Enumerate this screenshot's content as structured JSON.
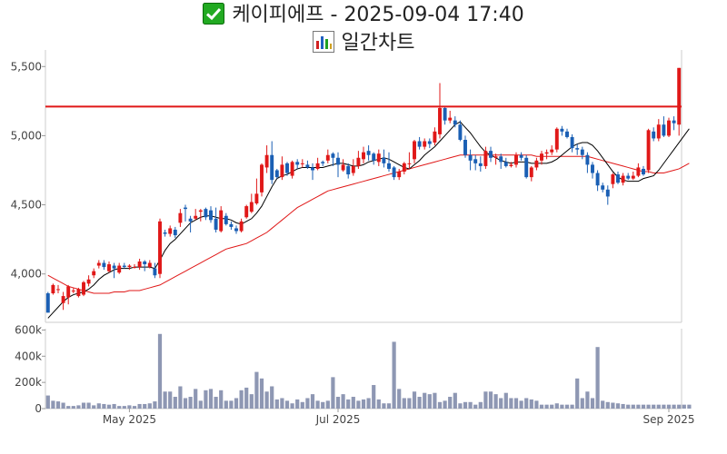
{
  "header": {
    "title": "케이피에프 - 2025-09-04 17:40",
    "subtitle": "일간차트",
    "check_icon": "check-box-icon",
    "chart_icon": "bar-chart-icon"
  },
  "chart_data": [
    {
      "type": "candlestick",
      "y_ticks": [
        "5,500",
        "5,000",
        "4,500",
        "4,000"
      ],
      "y_tick_values": [
        5500,
        5000,
        4500,
        4000
      ],
      "ylim": [
        3650,
        5620
      ],
      "reference_line": 5210,
      "up_color": "#e01818",
      "down_color": "#1a5fb4",
      "ma_short_color": "#000000",
      "ma_long_color": "#e01818",
      "candles": [
        [
          3860,
          3720,
          3870,
          3720
        ],
        [
          3860,
          3920,
          3930,
          3850
        ],
        [
          3890,
          3890,
          3920,
          3860
        ],
        [
          3790,
          3840,
          3870,
          3740
        ],
        [
          3830,
          3910,
          3920,
          3780
        ],
        [
          3880,
          3880,
          3900,
          3860
        ],
        [
          3840,
          3890,
          3900,
          3830
        ],
        [
          3850,
          3940,
          3950,
          3840
        ],
        [
          3930,
          3960,
          3990,
          3910
        ],
        [
          3990,
          4020,
          4040,
          3970
        ],
        [
          4060,
          4080,
          4100,
          4040
        ],
        [
          4080,
          4050,
          4100,
          4030
        ],
        [
          4020,
          4070,
          4090,
          4010
        ],
        [
          4060,
          4040,
          4080,
          3970
        ],
        [
          4010,
          4060,
          4080,
          4000
        ],
        [
          4060,
          4050,
          4080,
          4040
        ],
        [
          4050,
          4060,
          4070,
          4030
        ],
        [
          4050,
          4050,
          4070,
          4040
        ],
        [
          4050,
          4090,
          4110,
          4030
        ],
        [
          4090,
          4070,
          4100,
          4020
        ],
        [
          4050,
          4080,
          4100,
          4040
        ],
        [
          4040,
          3990,
          4080,
          3970
        ],
        [
          4000,
          4380,
          4400,
          3970
        ],
        [
          4300,
          4290,
          4320,
          4270
        ],
        [
          4290,
          4330,
          4350,
          4270
        ],
        [
          4320,
          4280,
          4340,
          4260
        ],
        [
          4370,
          4440,
          4470,
          4340
        ],
        [
          4480,
          4470,
          4500,
          4380
        ],
        [
          4400,
          4380,
          4420,
          4300
        ],
        [
          4400,
          4420,
          4470,
          4390
        ],
        [
          4450,
          4460,
          4470,
          4380
        ],
        [
          4470,
          4410,
          4480,
          4390
        ],
        [
          4460,
          4390,
          4490,
          4370
        ],
        [
          4400,
          4320,
          4480,
          4300
        ],
        [
          4310,
          4460,
          4490,
          4300
        ],
        [
          4420,
          4360,
          4440,
          4350
        ],
        [
          4360,
          4340,
          4380,
          4320
        ],
        [
          4330,
          4310,
          4350,
          4290
        ],
        [
          4310,
          4380,
          4400,
          4300
        ],
        [
          4410,
          4490,
          4500,
          4400
        ],
        [
          4450,
          4520,
          4580,
          4440
        ],
        [
          4510,
          4580,
          4690,
          4500
        ],
        [
          4590,
          4790,
          4800,
          4560
        ],
        [
          4770,
          4860,
          4930,
          4730
        ],
        [
          4860,
          4680,
          4960,
          4650
        ],
        [
          4750,
          4700,
          4760,
          4690
        ],
        [
          4700,
          4790,
          4850,
          4680
        ],
        [
          4800,
          4730,
          4810,
          4710
        ],
        [
          4710,
          4810,
          4820,
          4690
        ],
        [
          4810,
          4790,
          4830,
          4760
        ],
        [
          4800,
          4800,
          4830,
          4770
        ],
        [
          4790,
          4770,
          4820,
          4760
        ],
        [
          4770,
          4750,
          4800,
          4680
        ],
        [
          4760,
          4800,
          4840,
          4750
        ],
        [
          4810,
          4800,
          4820,
          4780
        ],
        [
          4820,
          4860,
          4900,
          4800
        ],
        [
          4870,
          4840,
          4880,
          4780
        ],
        [
          4840,
          4790,
          4880,
          4700
        ],
        [
          4750,
          4790,
          4830,
          4740
        ],
        [
          4780,
          4720,
          4800,
          4690
        ],
        [
          4730,
          4780,
          4830,
          4710
        ],
        [
          4780,
          4840,
          4890,
          4760
        ],
        [
          4830,
          4880,
          4920,
          4800
        ],
        [
          4890,
          4860,
          4930,
          4820
        ],
        [
          4870,
          4820,
          4880,
          4790
        ],
        [
          4810,
          4870,
          4900,
          4780
        ],
        [
          4840,
          4800,
          4900,
          4770
        ],
        [
          4800,
          4760,
          4880,
          4740
        ],
        [
          4770,
          4700,
          4780,
          4680
        ],
        [
          4700,
          4740,
          4760,
          4680
        ],
        [
          4740,
          4800,
          4810,
          4720
        ],
        [
          4800,
          4800,
          4880,
          4760
        ],
        [
          4830,
          4960,
          4970,
          4800
        ],
        [
          4960,
          4920,
          4990,
          4900
        ],
        [
          4920,
          4960,
          4980,
          4900
        ],
        [
          4960,
          4940,
          4980,
          4910
        ],
        [
          4950,
          5030,
          5060,
          4930
        ],
        [
          5010,
          5200,
          5380,
          4980
        ],
        [
          5200,
          5110,
          5210,
          5080
        ],
        [
          5110,
          5130,
          5180,
          5090
        ],
        [
          5110,
          5080,
          5140,
          5060
        ],
        [
          5080,
          4970,
          5110,
          4960
        ],
        [
          4970,
          4860,
          5000,
          4840
        ],
        [
          4860,
          4820,
          4900,
          4750
        ],
        [
          4830,
          4800,
          4860,
          4750
        ],
        [
          4800,
          4780,
          4850,
          4740
        ],
        [
          4780,
          4890,
          4920,
          4760
        ],
        [
          4890,
          4840,
          4920,
          4810
        ],
        [
          4840,
          4850,
          4870,
          4790
        ],
        [
          4850,
          4810,
          4870,
          4760
        ],
        [
          4810,
          4780,
          4840,
          4770
        ],
        [
          4780,
          4790,
          4810,
          4770
        ],
        [
          4790,
          4860,
          4880,
          4770
        ],
        [
          4860,
          4840,
          4880,
          4820
        ],
        [
          4840,
          4700,
          4860,
          4690
        ],
        [
          4700,
          4770,
          4780,
          4670
        ],
        [
          4770,
          4820,
          4840,
          4750
        ],
        [
          4820,
          4870,
          4890,
          4790
        ],
        [
          4870,
          4880,
          4900,
          4830
        ],
        [
          4880,
          4900,
          4930,
          4860
        ],
        [
          4900,
          5050,
          5060,
          4880
        ],
        [
          5050,
          5030,
          5070,
          5000
        ],
        [
          5030,
          4990,
          5050,
          4980
        ],
        [
          4990,
          4910,
          5010,
          4880
        ],
        [
          4910,
          4900,
          4940,
          4860
        ],
        [
          4900,
          4860,
          4920,
          4830
        ],
        [
          4860,
          4790,
          4880,
          4730
        ],
        [
          4790,
          4730,
          4810,
          4690
        ],
        [
          4730,
          4640,
          4750,
          4600
        ],
        [
          4640,
          4610,
          4660,
          4590
        ],
        [
          4610,
          4560,
          4640,
          4500
        ],
        [
          4650,
          4720,
          4730,
          4620
        ],
        [
          4720,
          4660,
          4740,
          4650
        ],
        [
          4660,
          4710,
          4730,
          4640
        ],
        [
          4710,
          4690,
          4730,
          4680
        ],
        [
          4690,
          4710,
          4740,
          4680
        ],
        [
          4710,
          4770,
          4800,
          4700
        ],
        [
          4760,
          4720,
          4780,
          4710
        ],
        [
          4750,
          5040,
          5050,
          4730
        ],
        [
          5030,
          4980,
          5060,
          4960
        ],
        [
          4980,
          5080,
          5120,
          4960
        ],
        [
          5080,
          5000,
          5140,
          4990
        ],
        [
          5000,
          5110,
          5130,
          4990
        ],
        [
          5110,
          5090,
          5140,
          5040
        ],
        [
          5080,
          5490,
          5490,
          5000
        ]
      ],
      "ma_short": [
        3680,
        3720,
        3760,
        3800,
        3830,
        3850,
        3860,
        3870,
        3890,
        3920,
        3960,
        3990,
        4010,
        4030,
        4040,
        4040,
        4040,
        4050,
        4050,
        4050,
        4050,
        4040,
        4100,
        4170,
        4220,
        4250,
        4290,
        4330,
        4370,
        4390,
        4410,
        4420,
        4420,
        4410,
        4400,
        4400,
        4390,
        4370,
        4360,
        4380,
        4400,
        4440,
        4490,
        4560,
        4630,
        4690,
        4710,
        4720,
        4740,
        4760,
        4770,
        4770,
        4770,
        4770,
        4770,
        4780,
        4790,
        4800,
        4800,
        4790,
        4780,
        4780,
        4790,
        4810,
        4820,
        4830,
        4840,
        4830,
        4810,
        4790,
        4770,
        4760,
        4790,
        4820,
        4860,
        4890,
        4920,
        4960,
        5000,
        5040,
        5080,
        5100,
        5060,
        5020,
        4970,
        4920,
        4880,
        4860,
        4840,
        4820,
        4810,
        4800,
        4810,
        4810,
        4810,
        4800,
        4800,
        4800,
        4800,
        4810,
        4830,
        4860,
        4890,
        4920,
        4940,
        4950,
        4950,
        4930,
        4890,
        4840,
        4790,
        4740,
        4700,
        4680,
        4670,
        4670,
        4670,
        4690,
        4700,
        4710,
        4750,
        4800,
        4850,
        4900,
        4950,
        5000,
        5050
      ],
      "ma_long": [
        3990,
        3970,
        3950,
        3930,
        3910,
        3900,
        3890,
        3880,
        3870,
        3860,
        3860,
        3860,
        3860,
        3870,
        3870,
        3870,
        3880,
        3880,
        3880,
        3890,
        3900,
        3910,
        3920,
        3940,
        3960,
        3980,
        4000,
        4020,
        4040,
        4060,
        4080,
        4100,
        4120,
        4140,
        4160,
        4180,
        4190,
        4200,
        4210,
        4220,
        4240,
        4260,
        4280,
        4300,
        4330,
        4360,
        4390,
        4420,
        4450,
        4480,
        4500,
        4520,
        4540,
        4560,
        4580,
        4600,
        4610,
        4620,
        4630,
        4640,
        4650,
        4660,
        4670,
        4680,
        4690,
        4700,
        4710,
        4720,
        4730,
        4740,
        4750,
        4760,
        4770,
        4780,
        4790,
        4800,
        4810,
        4820,
        4830,
        4840,
        4850,
        4860,
        4860,
        4860,
        4860,
        4860,
        4860,
        4860,
        4860,
        4860,
        4860,
        4860,
        4860,
        4860,
        4860,
        4860,
        4850,
        4850,
        4850,
        4850,
        4850,
        4850,
        4850,
        4850,
        4850,
        4850,
        4850,
        4840,
        4830,
        4820,
        4810,
        4800,
        4790,
        4780,
        4770,
        4760,
        4750,
        4740,
        4740,
        4730,
        4730,
        4730,
        4740,
        4750,
        4760,
        4780,
        4800
      ],
      "x_labels": [
        "May 2025",
        "Jul 2025",
        "Sep 2025"
      ],
      "x_label_index": [
        16,
        57,
        122
      ]
    },
    {
      "type": "bar",
      "y_ticks": [
        "600k",
        "400k",
        "200k",
        "0"
      ],
      "y_tick_values": [
        600000,
        400000,
        200000,
        0
      ],
      "ylim": [
        0,
        610000
      ],
      "bar_color": "#8e97b3",
      "values": [
        100000,
        60000,
        55000,
        45000,
        20000,
        20000,
        25000,
        45000,
        45000,
        25000,
        40000,
        35000,
        30000,
        35000,
        20000,
        20000,
        25000,
        20000,
        35000,
        35000,
        40000,
        55000,
        570000,
        130000,
        130000,
        90000,
        170000,
        80000,
        90000,
        150000,
        60000,
        140000,
        150000,
        90000,
        140000,
        60000,
        60000,
        80000,
        140000,
        160000,
        110000,
        280000,
        230000,
        130000,
        170000,
        70000,
        80000,
        60000,
        40000,
        70000,
        50000,
        80000,
        110000,
        60000,
        50000,
        60000,
        240000,
        90000,
        110000,
        70000,
        90000,
        60000,
        70000,
        80000,
        180000,
        70000,
        40000,
        40000,
        510000,
        150000,
        80000,
        80000,
        130000,
        90000,
        120000,
        110000,
        120000,
        50000,
        60000,
        90000,
        120000,
        40000,
        50000,
        50000,
        30000,
        50000,
        130000,
        130000,
        110000,
        80000,
        120000,
        80000,
        80000,
        60000,
        80000,
        70000,
        60000,
        30000,
        30000,
        30000,
        40000,
        30000,
        30000,
        30000,
        230000,
        80000,
        130000,
        80000,
        470000,
        60000,
        50000,
        45000,
        40000,
        35000,
        30000,
        30000,
        30000,
        30000,
        30000,
        30000,
        30000,
        30000,
        30000,
        30000,
        30000,
        30000,
        30000
      ]
    }
  ]
}
